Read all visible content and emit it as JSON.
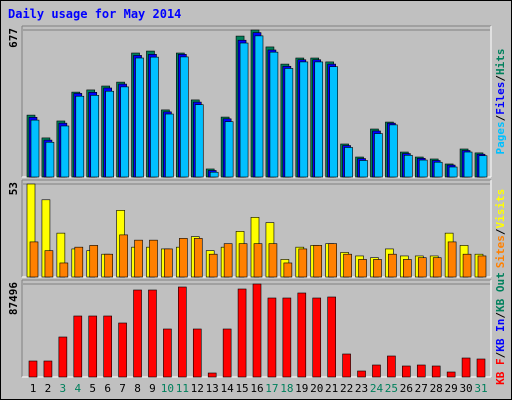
{
  "chart_data": [
    {
      "type": "bar",
      "title": "Daily usage for May 2014",
      "ylim": [
        0,
        677
      ],
      "yticks": [
        677
      ],
      "legend_separator": "/",
      "series": [
        {
          "name": "Hits",
          "color": "#00805c",
          "values": [
            285,
            180,
            258,
            391,
            401,
            419,
            437,
            571,
            580,
            309,
            571,
            355,
            37,
            276,
            649,
            677,
            599,
            520,
            548,
            548,
            530,
            152,
            92,
            221,
            253,
            115,
            92,
            83,
            60,
            129,
            111
          ]
        },
        {
          "name": "Files",
          "color": "#0000ff",
          "values": [
            275,
            170,
            248,
            385,
            390,
            410,
            428,
            560,
            565,
            300,
            565,
            345,
            30,
            268,
            630,
            665,
            585,
            510,
            540,
            540,
            520,
            145,
            85,
            212,
            248,
            108,
            86,
            76,
            55,
            122,
            105
          ]
        },
        {
          "name": "Pages",
          "color": "#00c0ff",
          "values": [
            262,
            160,
            235,
            372,
            376,
            395,
            415,
            548,
            552,
            290,
            553,
            333,
            22,
            255,
            617,
            650,
            575,
            500,
            530,
            530,
            508,
            136,
            76,
            200,
            240,
            100,
            78,
            68,
            46,
            115,
            98
          ]
        }
      ]
    },
    {
      "type": "bar",
      "ylim": [
        0,
        53
      ],
      "yticks": [
        53
      ],
      "legend_separator": "/",
      "series": [
        {
          "name": "Visits",
          "color": "#ffff00",
          "values": [
            53,
            44,
            25,
            16,
            15,
            13,
            38,
            17,
            17,
            16,
            17,
            23,
            15,
            17,
            26,
            34,
            31,
            10,
            17,
            18,
            19,
            14,
            12,
            11,
            16,
            12,
            12,
            12,
            25,
            18,
            13
          ]
        },
        {
          "name": "Sites",
          "color": "#ff8000",
          "values": [
            20,
            15,
            8,
            17,
            18,
            13,
            24,
            21,
            21,
            16,
            22,
            22,
            13,
            19,
            19,
            19,
            19,
            8,
            16,
            18,
            19,
            13,
            10,
            10,
            13,
            10,
            11,
            11,
            20,
            13,
            12
          ]
        }
      ]
    },
    {
      "type": "bar",
      "ylim": [
        0,
        87496
      ],
      "yticks": [
        87496
      ],
      "legend_separator": "/",
      "categories": [
        "1",
        "2",
        "3",
        "4",
        "5",
        "6",
        "7",
        "8",
        "9",
        "10",
        "11",
        "12",
        "13",
        "14",
        "15",
        "16",
        "17",
        "18",
        "19",
        "20",
        "21",
        "22",
        "23",
        "24",
        "25",
        "26",
        "27",
        "28",
        "29",
        "30",
        "31"
      ],
      "category_colors": [
        "#000000",
        "#000000",
        "#00805c",
        "#00805c",
        "#000000",
        "#000000",
        "#000000",
        "#000000",
        "#000000",
        "#00805c",
        "#00805c",
        "#000000",
        "#000000",
        "#000000",
        "#000000",
        "#000000",
        "#00805c",
        "#00805c",
        "#000000",
        "#000000",
        "#000000",
        "#000000",
        "#000000",
        "#00805c",
        "#00805c",
        "#000000",
        "#000000",
        "#000000",
        "#000000",
        "#000000",
        "#00805c"
      ],
      "series": [
        {
          "name": "KB Out",
          "color": "#00805c"
        },
        {
          "name": "KB In",
          "color": "#0000ff"
        },
        {
          "name": "KB F",
          "color": "#ff0000",
          "values": [
            15053,
            15053,
            37633,
            57389,
            57389,
            57389,
            50804,
            81851,
            81851,
            45159,
            84674,
            45159,
            3763,
            45159,
            82792,
            87496,
            74325,
            74325,
            79029,
            74325,
            75266,
            21638,
            5645,
            11290,
            19757,
            10349,
            11290,
            10349,
            4704,
            17875,
            16934
          ]
        }
      ]
    }
  ]
}
